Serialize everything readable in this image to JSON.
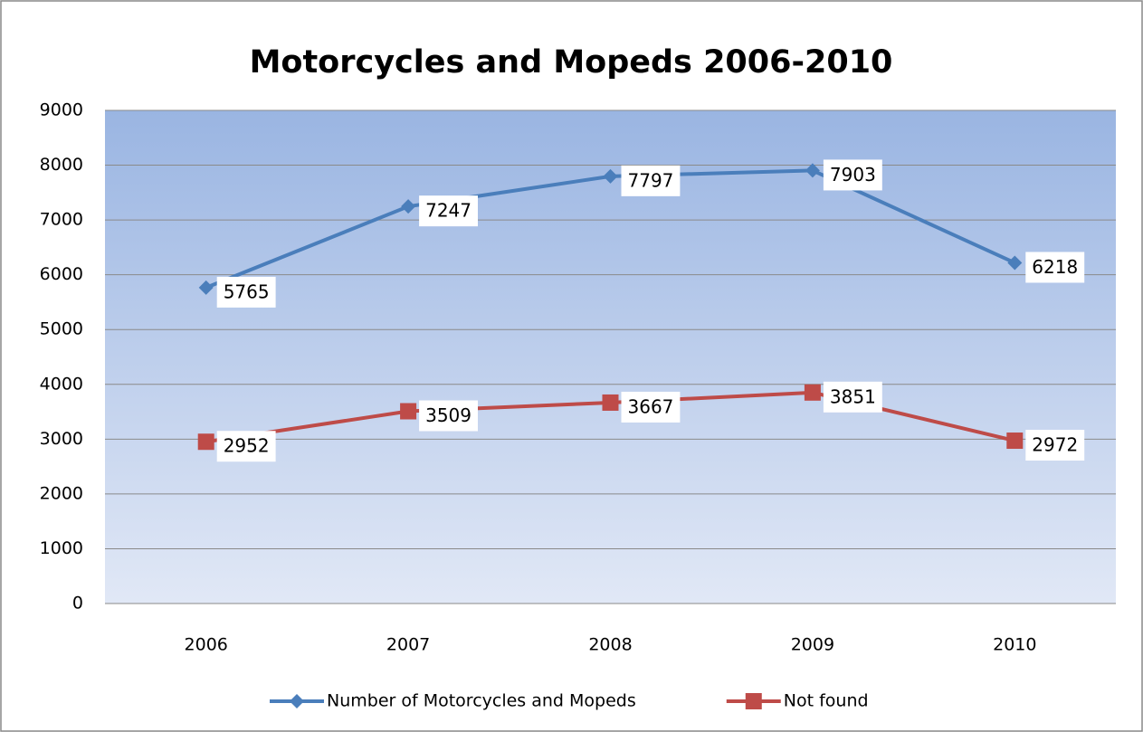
{
  "chart_data": {
    "type": "line",
    "title": "Motorcycles and Mopeds 2006-2010",
    "categories": [
      "2006",
      "2007",
      "2008",
      "2009",
      "2010"
    ],
    "series": [
      {
        "name": "Number of Motorcycles and Mopeds",
        "color": "#4a7ebb",
        "marker": "diamond",
        "values": [
          5765,
          7247,
          7797,
          7903,
          6218
        ]
      },
      {
        "name": "Not found",
        "color": "#be4b48",
        "marker": "square",
        "values": [
          2952,
          3509,
          3667,
          3851,
          2972
        ]
      }
    ],
    "ylim": [
      0,
      9000
    ],
    "yticks": [
      0,
      1000,
      2000,
      3000,
      4000,
      5000,
      6000,
      7000,
      8000,
      9000
    ],
    "grid": true,
    "legend": "bottom",
    "data_labels": true
  }
}
